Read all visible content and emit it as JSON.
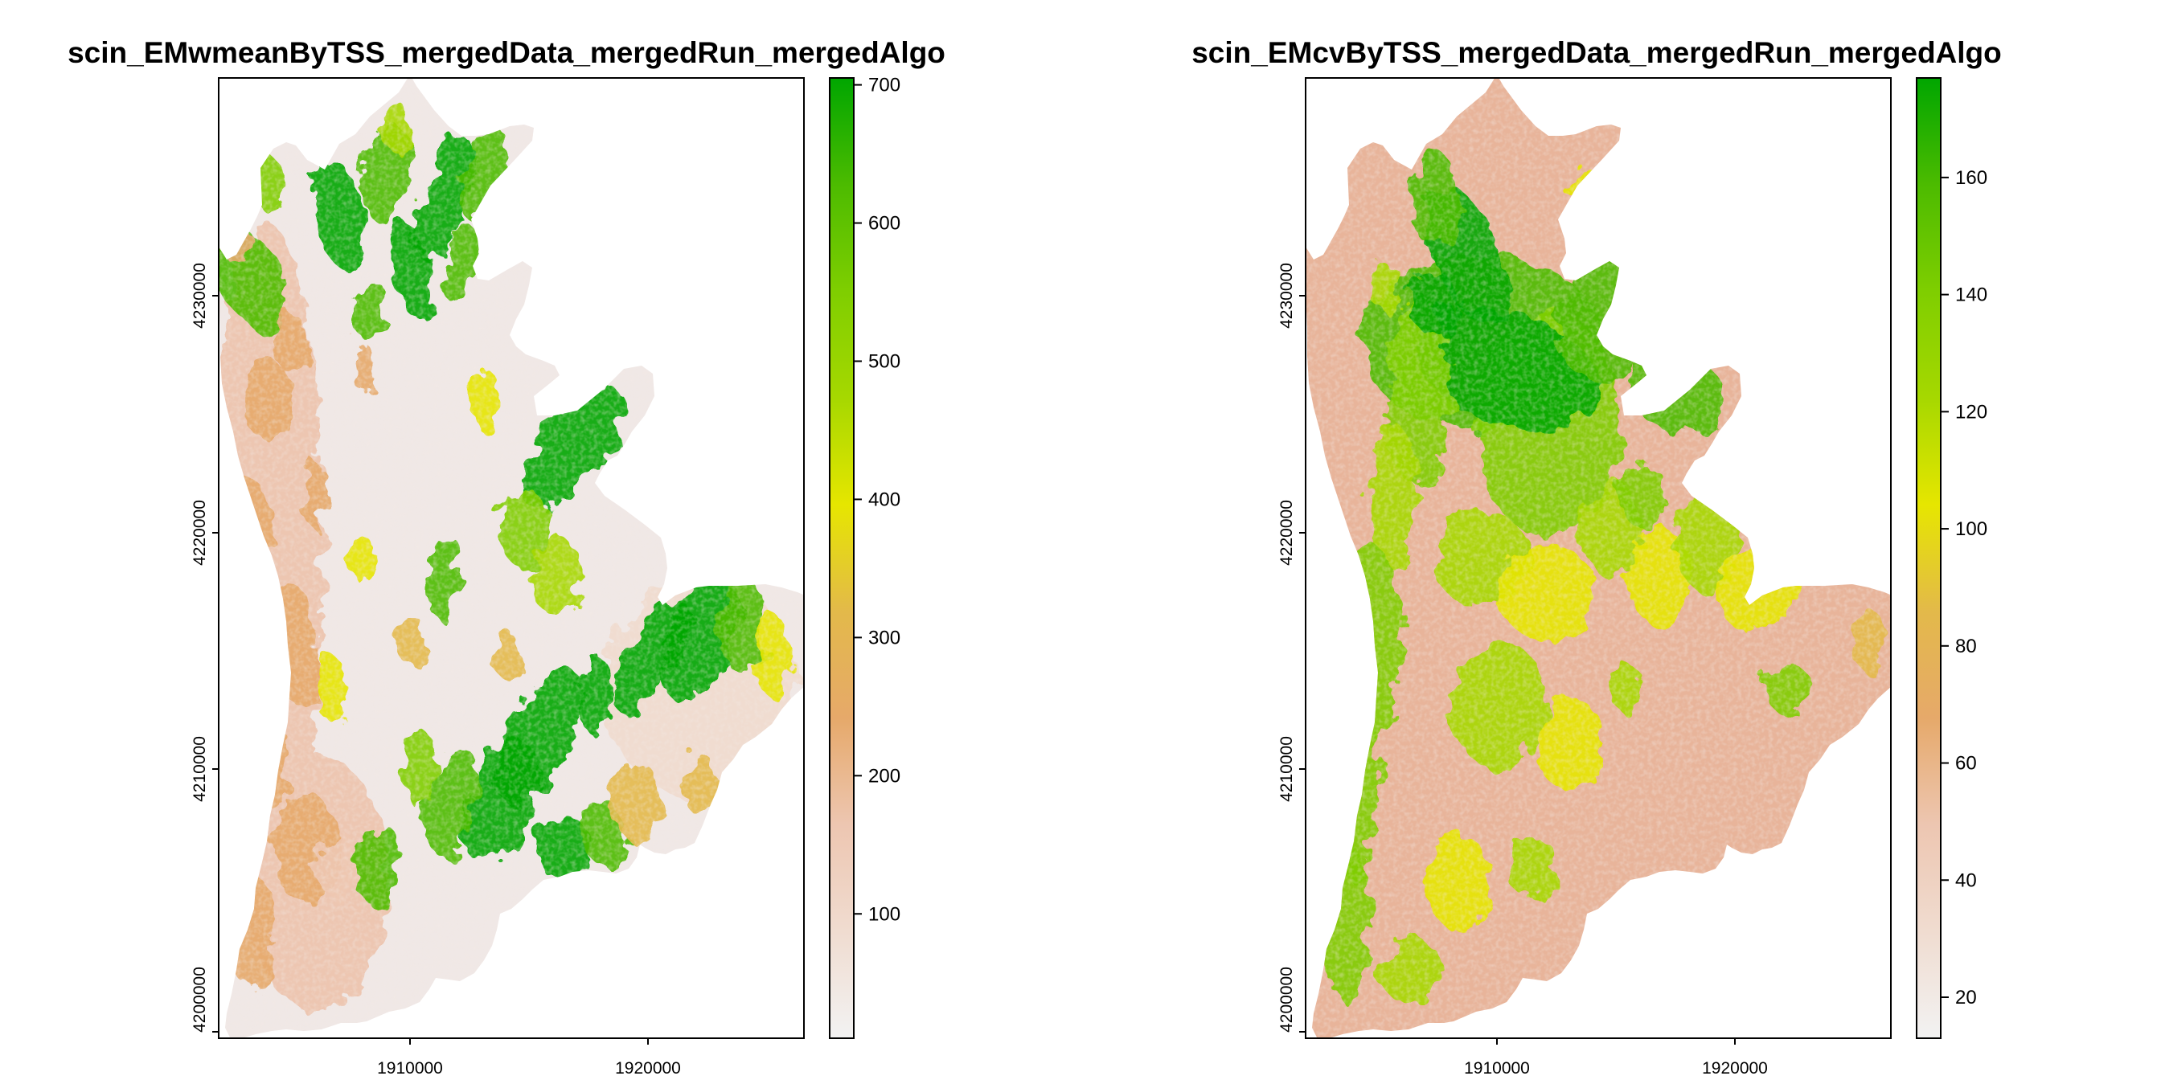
{
  "panels": [
    {
      "title": "scin_EMwmeanByTSS_mergedData_mergedRun_mergedAlgo",
      "colorbar": {
        "min": 10,
        "max": 705,
        "ticks": [
          100,
          200,
          300,
          400,
          500,
          600,
          700
        ]
      },
      "theme": "mean"
    },
    {
      "title": "scin_EMcvByTSS_mergedData_mergedRun_mergedAlgo",
      "colorbar": {
        "min": 13,
        "max": 177,
        "ticks": [
          20,
          40,
          60,
          80,
          100,
          120,
          140,
          160
        ]
      },
      "theme": "cv"
    }
  ],
  "chart_data": [
    {
      "type": "heatmap",
      "title": "scin_EMwmeanByTSS_mergedData_mergedRun_mergedAlgo",
      "xlabel": "",
      "ylabel": "",
      "x_ticks": [
        1910000,
        1920000
      ],
      "y_ticks": [
        4200000,
        4210000,
        4220000,
        4230000
      ],
      "xlim": [
        1902000,
        1927000
      ],
      "ylim": [
        4199800,
        4240500
      ],
      "colorbar_ticks": [
        100,
        200,
        300,
        400,
        500,
        600,
        700
      ],
      "colorbar_range": [
        10,
        705
      ],
      "colormap": [
        "#f2f2f2",
        "#edc6b1",
        "#e6a96a",
        "#e1c72e",
        "#e6e600",
        "#7fce00",
        "#4cbb00",
        "#00a600"
      ],
      "legend_position": "right"
    },
    {
      "type": "heatmap",
      "title": "scin_EMcvByTSS_mergedData_mergedRun_mergedAlgo",
      "xlabel": "",
      "ylabel": "",
      "x_ticks": [
        1910000,
        1920000
      ],
      "y_ticks": [
        4200000,
        4210000,
        4220000,
        4230000
      ],
      "xlim": [
        1902000,
        1927000
      ],
      "ylim": [
        4199800,
        4240500
      ],
      "colorbar_ticks": [
        20,
        40,
        60,
        80,
        100,
        120,
        140,
        160
      ],
      "colorbar_range": [
        13,
        177
      ],
      "colormap": [
        "#f2f2f2",
        "#edc6b1",
        "#e6a96a",
        "#e1c72e",
        "#e6e600",
        "#7fce00",
        "#4cbb00",
        "#00a600"
      ],
      "legend_position": "right"
    }
  ],
  "colors": {
    "ramp": [
      "#f2f2f2",
      "#f0dcd0",
      "#edc6b1",
      "#e6a96a",
      "#e3b94a",
      "#e6e600",
      "#a6d800",
      "#7fce00",
      "#4cbb00",
      "#00a600"
    ],
    "mean_fill": "#f0e8e6",
    "cv_fill": "#e8b49a"
  }
}
